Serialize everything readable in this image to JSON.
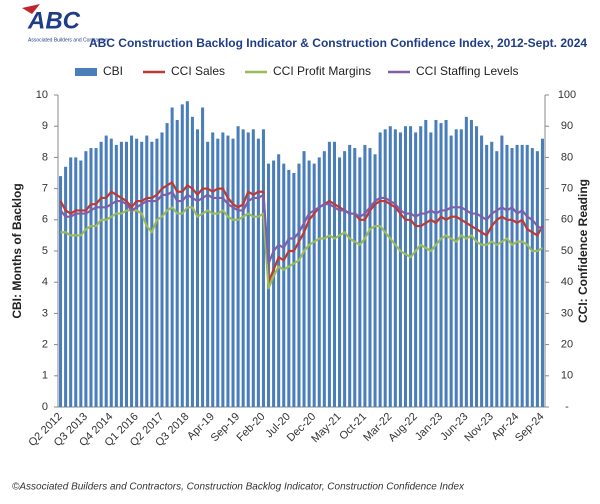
{
  "logo": {
    "text": "ABC",
    "subtext": "Associated Builders and Contractors"
  },
  "footer": "©Associated Builders and Contractors, Construction Backlog Indicator, Construction Confidence Index",
  "chart_data": {
    "type": "bar",
    "title": "ABC Construction Backlog Indicator & Construction Confidence Index, 2012-Sept. 2024",
    "y_label": "CBI: Months of Backlog",
    "y2_label": "CCI: Confidence Reading",
    "categories": [
      "Q2 2012",
      null,
      null,
      null,
      null,
      "Q3 2013",
      null,
      null,
      null,
      null,
      "Q4 2014",
      null,
      null,
      null,
      null,
      "Q1 2016",
      null,
      null,
      null,
      null,
      "Q2 2017",
      null,
      null,
      null,
      null,
      "Q3 2018",
      null,
      null,
      null,
      null,
      "Apr-19",
      null,
      null,
      null,
      null,
      "Sep-19",
      null,
      null,
      null,
      null,
      "Feb-20",
      null,
      null,
      null,
      null,
      "Jul-20",
      null,
      null,
      null,
      null,
      "Dec-20",
      null,
      null,
      null,
      null,
      "May-21",
      null,
      null,
      null,
      null,
      "Oct-21",
      null,
      null,
      null,
      null,
      "Mar-22",
      null,
      null,
      null,
      null,
      "Aug-22",
      null,
      null,
      null,
      null,
      "Jan-23",
      null,
      null,
      null,
      null,
      "Jun-23",
      null,
      null,
      null,
      null,
      "Nov-23",
      null,
      null,
      null,
      null,
      "Apr-24",
      null,
      null,
      null,
      null,
      "Sep-24"
    ],
    "ylim": [
      0,
      10
    ],
    "yticks": [
      0,
      1,
      2,
      3,
      4,
      5,
      6,
      7,
      8,
      9,
      10
    ],
    "y2lim": [
      0,
      100
    ],
    "y2ticks": [
      {
        "value": 0,
        "label": "-"
      },
      10,
      20,
      30,
      40,
      50,
      60,
      70,
      80,
      90,
      100
    ],
    "legend": "top",
    "series": [
      {
        "name": "CBI",
        "type": "bar",
        "color": "#4a7ebb",
        "values": [
          7.4,
          7.7,
          8.0,
          8.0,
          7.9,
          8.2,
          8.3,
          8.3,
          8.5,
          8.7,
          8.6,
          8.4,
          8.5,
          8.5,
          8.7,
          8.6,
          8.5,
          8.7,
          8.5,
          8.6,
          8.8,
          9.1,
          9.6,
          9.2,
          9.7,
          9.8,
          9.3,
          8.9,
          9.6,
          8.5,
          8.8,
          8.6,
          8.8,
          8.7,
          8.6,
          9.0,
          8.9,
          8.8,
          8.9,
          8.6,
          8.9,
          7.8,
          7.9,
          8.1,
          7.8,
          7.6,
          7.5,
          7.8,
          8.2,
          7.9,
          7.8,
          8.0,
          8.2,
          8.5,
          8.5,
          8.0,
          8.2,
          8.4,
          8.3,
          8.0,
          8.4,
          8.3,
          8.1,
          8.8,
          8.9,
          9.0,
          8.9,
          8.8,
          9.0,
          9.0,
          8.8,
          9.0,
          9.2,
          8.8,
          9.2,
          9.1,
          9.2,
          8.7,
          8.9,
          8.9,
          9.3,
          9.2,
          9.0,
          8.7,
          8.4,
          8.5,
          8.2,
          8.7,
          8.4,
          8.3,
          8.4,
          8.4,
          8.4,
          8.3,
          8.2,
          8.6
        ]
      },
      {
        "name": "CCI Sales",
        "type": "line",
        "axis": "y2",
        "color": "#be3a34",
        "values": [
          66,
          63,
          62,
          63,
          63,
          63,
          65,
          65,
          67,
          67,
          69,
          68,
          67,
          66,
          64,
          66,
          66,
          67,
          67,
          68,
          70,
          71,
          72,
          69,
          69,
          71,
          70,
          68,
          70,
          70,
          69,
          70,
          70,
          67,
          65,
          64,
          65,
          69,
          68,
          69,
          69,
          40,
          44,
          48,
          47,
          50,
          50,
          53,
          56,
          60,
          62,
          64,
          65,
          66,
          65,
          64,
          63,
          62,
          62,
          60,
          60,
          63,
          65,
          66,
          66,
          65,
          64,
          62,
          60,
          60,
          58,
          58,
          59,
          60,
          59,
          61,
          60,
          61,
          61,
          60,
          59,
          58,
          57,
          56,
          55,
          58,
          60,
          61,
          60,
          60,
          59,
          60,
          57,
          56,
          55,
          58
        ]
      },
      {
        "name": "CCI Profit Margins",
        "type": "line",
        "axis": "y2",
        "color": "#9bbb59",
        "values": [
          56,
          56,
          55,
          55,
          55,
          57,
          58,
          58,
          60,
          60,
          61,
          62,
          62,
          63,
          63,
          63,
          62,
          58,
          56,
          60,
          61,
          63,
          64,
          62,
          62,
          64,
          64,
          61,
          62,
          63,
          62,
          62,
          63,
          61,
          60,
          60,
          61,
          62,
          61,
          61,
          62,
          38,
          42,
          45,
          44,
          45,
          46,
          47,
          50,
          52,
          53,
          54,
          54,
          55,
          54,
          55,
          56,
          54,
          53,
          52,
          54,
          57,
          58,
          58,
          56,
          54,
          52,
          50,
          49,
          48,
          50,
          52,
          51,
          50,
          52,
          54,
          55,
          54,
          53,
          55,
          54,
          55,
          53,
          52,
          52,
          53,
          52,
          53,
          54,
          52,
          53,
          53,
          52,
          50,
          50,
          51
        ]
      },
      {
        "name": "CCI Staffing Levels",
        "type": "line",
        "axis": "y2",
        "color": "#7f5fa8",
        "values": [
          63,
          61,
          61,
          62,
          62,
          62,
          63,
          64,
          64,
          64,
          65,
          66,
          66,
          65,
          63,
          64,
          65,
          66,
          66,
          66,
          68,
          68,
          69,
          66,
          66,
          68,
          67,
          66,
          67,
          68,
          67,
          67,
          67,
          65,
          64,
          63,
          63,
          66,
          67,
          67,
          68,
          46,
          50,
          52,
          51,
          54,
          54,
          56,
          59,
          62,
          63,
          64,
          65,
          65,
          64,
          63,
          63,
          62,
          62,
          61,
          62,
          64,
          66,
          67,
          67,
          66,
          65,
          63,
          62,
          62,
          61,
          62,
          62,
          63,
          62,
          63,
          63,
          64,
          64,
          64,
          63,
          62,
          62,
          61,
          60,
          62,
          63,
          64,
          63,
          64,
          62,
          63,
          61,
          60,
          58,
          57
        ]
      }
    ]
  }
}
